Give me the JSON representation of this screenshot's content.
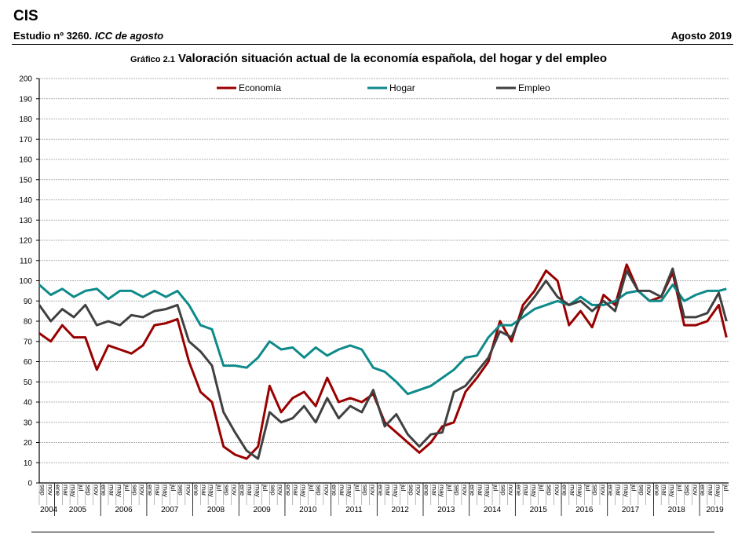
{
  "header": {
    "org": "CIS",
    "study_prefix": "Estudio nº 3260.",
    "study_name": "ICC de agosto",
    "date": "Agosto 2019"
  },
  "chart_data": {
    "type": "line",
    "title_number": "Gráfico 2.1",
    "title": "Valoración situación actual de la economía española, del hogar y del empleo",
    "xlabel": "",
    "ylabel": "",
    "ylim": [
      0,
      200
    ],
    "y_ticks": [
      0,
      10,
      20,
      30,
      40,
      50,
      60,
      70,
      80,
      90,
      100,
      110,
      120,
      130,
      140,
      150,
      160,
      170,
      180,
      190,
      200
    ],
    "grid": true,
    "legend_position": "top-center",
    "x_start": "sep 2004",
    "x_end": "ago 2019",
    "x_step_months": 3,
    "month_tick_cycle": [
      "ene",
      "mar",
      "may",
      "jul",
      "sep",
      "nov"
    ],
    "year_labels": [
      "2004",
      "2005",
      "2006",
      "2007",
      "2008",
      "2009",
      "2010",
      "2011",
      "2012",
      "2013",
      "2014",
      "2015",
      "2016",
      "2017",
      "2018",
      "2019"
    ],
    "series": [
      {
        "name": "Economía",
        "color": "#990000",
        "values": [
          74,
          70,
          78,
          72,
          72,
          56,
          68,
          66,
          64,
          68,
          78,
          79,
          81,
          60,
          45,
          40,
          18,
          14,
          12,
          18,
          48,
          35,
          42,
          45,
          38,
          52,
          40,
          42,
          40,
          44,
          30,
          25,
          20,
          15,
          20,
          28,
          30,
          45,
          52,
          60,
          80,
          70,
          88,
          95,
          105,
          100,
          78,
          85,
          77,
          93,
          88,
          108,
          95,
          90,
          92,
          104,
          78,
          78,
          80,
          88,
          72
        ]
      },
      {
        "name": "Hogar",
        "color": "#0e8a8a",
        "values": [
          98,
          93,
          96,
          92,
          95,
          96,
          91,
          95,
          95,
          92,
          95,
          92,
          95,
          88,
          78,
          76,
          58,
          58,
          57,
          62,
          70,
          66,
          67,
          62,
          67,
          63,
          66,
          68,
          66,
          57,
          55,
          50,
          44,
          46,
          48,
          52,
          56,
          62,
          63,
          72,
          78,
          78,
          82,
          86,
          88,
          90,
          88,
          92,
          88,
          88,
          90,
          94,
          95,
          90,
          90,
          98,
          90,
          93,
          95,
          95,
          96
        ]
      },
      {
        "name": "Empleo",
        "color": "#404040",
        "values": [
          88,
          80,
          86,
          82,
          88,
          78,
          80,
          78,
          83,
          82,
          85,
          86,
          88,
          70,
          65,
          58,
          35,
          25,
          16,
          12,
          35,
          30,
          32,
          38,
          30,
          42,
          32,
          38,
          35,
          46,
          28,
          34,
          24,
          18,
          24,
          25,
          45,
          48,
          55,
          62,
          75,
          72,
          85,
          92,
          100,
          92,
          88,
          90,
          85,
          90,
          85,
          105,
          95,
          95,
          92,
          106,
          82,
          82,
          84,
          94,
          80
        ]
      }
    ]
  }
}
